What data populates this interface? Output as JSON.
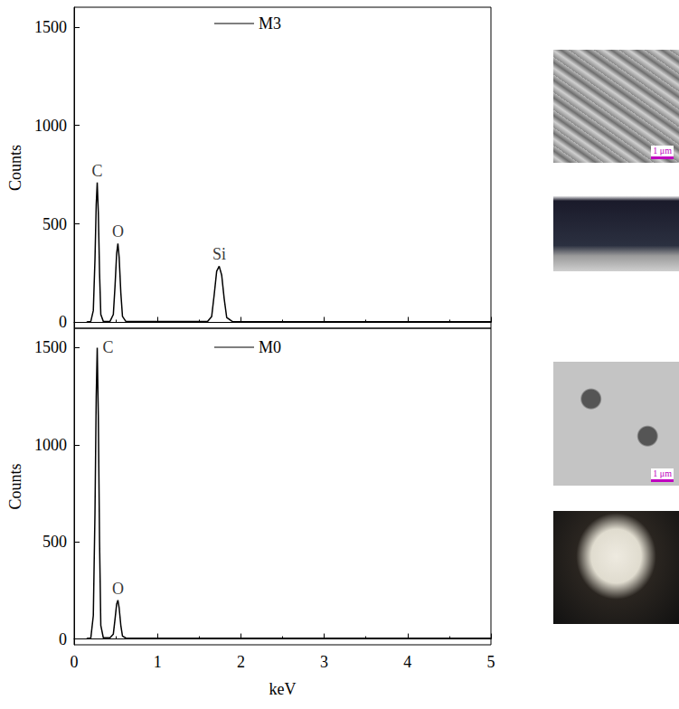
{
  "chart_data": [
    {
      "type": "line",
      "tick_labels": "y",
      "y_label": "Counts",
      "legend": "top",
      "xlim": [
        0,
        5
      ],
      "xticks": [
        0,
        1,
        2,
        3,
        4,
        5
      ],
      "ylim": [
        -30,
        1600
      ],
      "yticks": [
        0,
        500,
        1000,
        1500
      ],
      "grid": false,
      "series": [
        {
          "name": "M3",
          "color": "#000000",
          "x": [
            0.15,
            0.2,
            0.23,
            0.25,
            0.265,
            0.277,
            0.29,
            0.305,
            0.32,
            0.35,
            0.43,
            0.47,
            0.49,
            0.51,
            0.525,
            0.54,
            0.56,
            0.58,
            0.62,
            1.0,
            1.6,
            1.65,
            1.68,
            1.71,
            1.74,
            1.77,
            1.8,
            1.83,
            1.9,
            2.5,
            5.0
          ],
          "values": [
            2,
            5,
            60,
            320,
            600,
            710,
            560,
            250,
            40,
            5,
            5,
            40,
            180,
            350,
            400,
            330,
            150,
            30,
            5,
            4,
            4,
            30,
            140,
            260,
            285,
            240,
            120,
            25,
            4,
            3,
            3
          ]
        }
      ],
      "annotations": [
        {
          "text": "C",
          "x": 0.277,
          "y": 710
        },
        {
          "text": "O",
          "x": 0.525,
          "y": 400
        },
        {
          "text": "Si",
          "x": 1.74,
          "y": 285
        }
      ]
    },
    {
      "type": "line",
      "x_label": "keV",
      "y_label": "Counts",
      "legend": "top",
      "xlim": [
        0,
        5
      ],
      "xticks": [
        0,
        1,
        2,
        3,
        4,
        5
      ],
      "ylim": [
        -30,
        1600
      ],
      "yticks": [
        0,
        500,
        1000,
        1500
      ],
      "grid": false,
      "series": [
        {
          "name": "M0",
          "color": "#000000",
          "x": [
            0.15,
            0.2,
            0.23,
            0.25,
            0.265,
            0.277,
            0.29,
            0.305,
            0.32,
            0.35,
            0.43,
            0.47,
            0.49,
            0.51,
            0.525,
            0.54,
            0.56,
            0.58,
            0.62,
            1.0,
            2.0,
            3.0,
            4.0,
            5.0
          ],
          "values": [
            3,
            5,
            120,
            650,
            1250,
            1500,
            1150,
            500,
            70,
            6,
            6,
            25,
            100,
            180,
            200,
            160,
            70,
            15,
            5,
            4,
            4,
            4,
            4,
            4
          ]
        }
      ],
      "annotations": [
        {
          "text": "C",
          "x": 0.277,
          "y": 1500
        },
        {
          "text": "O",
          "x": 0.525,
          "y": 200
        }
      ]
    }
  ],
  "insets": [
    {
      "scale_bar": "1 μm"
    },
    {},
    {
      "scale_bar": "1 μm"
    },
    {}
  ]
}
